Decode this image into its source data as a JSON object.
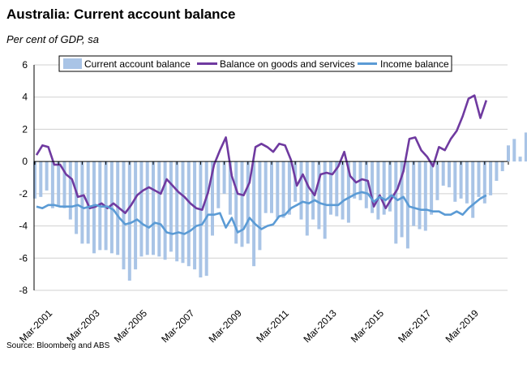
{
  "title": "Australia: Current account balance",
  "subtitle": "Per cent of GDP, sa",
  "source": "Source: Bloomberg and ABS",
  "colors": {
    "bars": "#a9c4e6",
    "goods": "#6f3aa0",
    "income": "#5b9bd5",
    "grid": "#d0d0d0"
  },
  "chart_data": {
    "type": "bar",
    "title": "Australia: Current account balance",
    "ylabel": "",
    "xlabel": "",
    "ylim": [
      -8,
      6
    ],
    "yticks": [
      -8,
      -6,
      -4,
      -2,
      0,
      2,
      4,
      6
    ],
    "grid": true,
    "legend": "top",
    "xtick_labels": [
      "Mar-2001",
      "Mar-2003",
      "Mar-2005",
      "Mar-2007",
      "Mar-2009",
      "Mar-2011",
      "Mar-2013",
      "Mar-2015",
      "Mar-2017",
      "Mar-2019"
    ],
    "start_quarter": "Mar-2001",
    "series": [
      {
        "name": "Current account balance",
        "kind": "bar",
        "values": [
          -2.3,
          -2.2,
          -1.8,
          -2.9,
          -2.8,
          -2.9,
          -3.6,
          -4.5,
          -5.1,
          -5.1,
          -5.7,
          -5.5,
          -5.5,
          -5.7,
          -5.8,
          -6.7,
          -7.4,
          -6.7,
          -5.9,
          -5.8,
          -5.8,
          -5.9,
          -6.1,
          -5.6,
          -6.2,
          -6.3,
          -6.5,
          -6.7,
          -7.2,
          -7.1,
          -4.6,
          -2.9,
          -2.0,
          -3.3,
          -5.1,
          -5.3,
          -5.1,
          -6.5,
          -5.5,
          -3.2,
          -3.2,
          -3.5,
          -3.5,
          -3.3,
          -2.5,
          -3.6,
          -4.6,
          -3.6,
          -4.2,
          -4.8,
          -3.3,
          -3.4,
          -3.6,
          -3.8,
          -2.3,
          -2.4,
          -2.9,
          -3.2,
          -3.6,
          -3.3,
          -3.1,
          -5.1,
          -4.7,
          -5.4,
          -4.0,
          -4.2,
          -4.3,
          -3.3,
          -2.4,
          -1.5,
          -1.6,
          -2.5,
          -2.3,
          -2.6,
          -3.5,
          -2.2,
          -2.6,
          -2.1,
          -1.2,
          -0.6,
          1.0,
          1.4,
          0.3,
          1.8
        ]
      },
      {
        "name": "Balance on goods and services",
        "kind": "line",
        "values": [
          0.4,
          1.0,
          0.9,
          -0.2,
          -0.2,
          -0.8,
          -1.1,
          -2.2,
          -2.1,
          -2.9,
          -2.8,
          -2.6,
          -2.9,
          -2.6,
          -2.9,
          -3.2,
          -2.7,
          -2.1,
          -1.8,
          -1.6,
          -1.8,
          -2.0,
          -1.1,
          -1.5,
          -1.9,
          -2.2,
          -2.6,
          -2.9,
          -3.0,
          -1.9,
          -0.2,
          0.7,
          1.5,
          -0.9,
          -2.0,
          -2.1,
          -1.3,
          0.9,
          1.1,
          0.9,
          0.6,
          1.1,
          1.0,
          0.1,
          -1.5,
          -0.8,
          -1.6,
          -2.1,
          -0.8,
          -0.7,
          -0.8,
          -0.3,
          0.6,
          -0.9,
          -1.3,
          -1.1,
          -1.2,
          -2.8,
          -2.1,
          -2.9,
          -2.3,
          -1.7,
          -0.6,
          1.4,
          1.5,
          0.7,
          0.3,
          -0.3,
          0.9,
          0.7,
          1.4,
          1.9,
          2.8,
          3.9,
          4.1,
          2.7,
          3.8
        ]
      },
      {
        "name": "Income balance",
        "kind": "line",
        "values": [
          -2.8,
          -2.9,
          -2.7,
          -2.7,
          -2.8,
          -2.8,
          -2.8,
          -2.7,
          -2.9,
          -2.8,
          -2.7,
          -2.8,
          -2.8,
          -3.0,
          -3.5,
          -3.9,
          -3.8,
          -3.6,
          -3.9,
          -4.1,
          -3.8,
          -3.9,
          -4.4,
          -4.5,
          -4.4,
          -4.5,
          -4.3,
          -4.0,
          -3.9,
          -3.3,
          -3.3,
          -3.2,
          -4.1,
          -3.5,
          -4.4,
          -4.2,
          -3.5,
          -3.9,
          -4.2,
          -4.0,
          -3.9,
          -3.4,
          -3.3,
          -2.9,
          -2.7,
          -2.5,
          -2.6,
          -2.4,
          -2.6,
          -2.7,
          -2.7,
          -2.7,
          -2.4,
          -2.2,
          -2.0,
          -1.9,
          -2.0,
          -2.5,
          -2.2,
          -2.4,
          -2.1,
          -2.4,
          -2.2,
          -2.8,
          -2.9,
          -3.0,
          -3.0,
          -3.1,
          -3.1,
          -3.3,
          -3.3,
          -3.1,
          -3.3,
          -2.9,
          -2.6,
          -2.3,
          -2.1
        ]
      }
    ]
  }
}
